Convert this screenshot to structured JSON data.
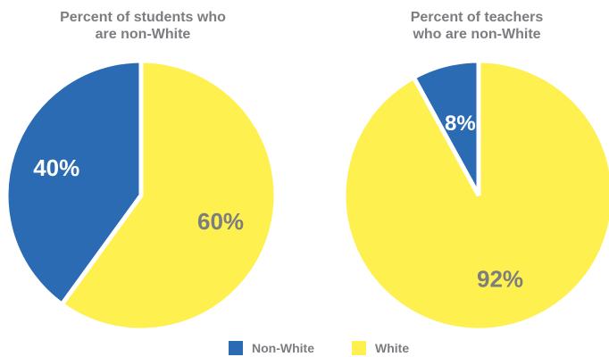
{
  "colors": {
    "non_white": "#2b6bb3",
    "white": "#fef04f",
    "label_dark": "#7b7d80",
    "label_light": "#ffffff"
  },
  "chart_data": [
    {
      "type": "pie",
      "title": "Percent of students who are non-White",
      "title_lines": [
        "Percent of students who",
        "are non-White"
      ],
      "slices": [
        {
          "label": "Non-White",
          "value": 40,
          "display": "40%"
        },
        {
          "label": "White",
          "value": 60,
          "display": "60%"
        }
      ]
    },
    {
      "type": "pie",
      "title": "Percent of teachers who are non-White",
      "title_lines": [
        "Percent of teachers",
        "who are non-White"
      ],
      "slices": [
        {
          "label": "Non-White",
          "value": 8,
          "display": "8%"
        },
        {
          "label": "White",
          "value": 92,
          "display": "92%"
        }
      ]
    }
  ],
  "legend": [
    {
      "label": "Non-White",
      "color": "#2b6bb3"
    },
    {
      "label": "White",
      "color": "#fef04f"
    }
  ]
}
